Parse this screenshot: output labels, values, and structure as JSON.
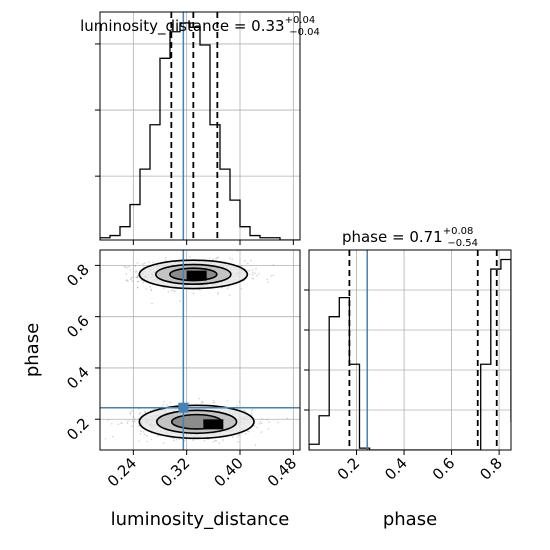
{
  "chart_data": {
    "type": "corner",
    "parameters": [
      "luminosity_distance",
      "phase"
    ],
    "colors": {
      "truth": "#4682b4",
      "hist": "#000000",
      "quantile": "#000000",
      "grid": "#b0b0b0",
      "scatter": "#808080"
    },
    "truth": {
      "luminosity_distance": 0.315,
      "phase": 0.245
    },
    "luminosity_distance": {
      "title_prefix": "luminosity_distance = ",
      "median": "0.33",
      "plus": "+0.04",
      "minus": "−0.04",
      "quantiles": [
        0.297,
        0.33,
        0.366
      ],
      "xlim": [
        0.19,
        0.49
      ],
      "ticks": [
        "0.24",
        "0.32",
        "0.40",
        "0.48"
      ],
      "tick_values": [
        0.24,
        0.32,
        0.4,
        0.48
      ],
      "xlabel": "luminosity_distance",
      "bin_edges_start": 0.19,
      "bin_width": 0.015,
      "counts": [
        1,
        2,
        6,
        16,
        32,
        52,
        82,
        94,
        98,
        96,
        88,
        52,
        32,
        18,
        6,
        2,
        1,
        1,
        0,
        0
      ]
    },
    "phase": {
      "title_prefix": "phase = ",
      "median": "0.71",
      "plus": "+0.08",
      "minus": "−0.54",
      "quantiles": [
        0.17,
        0.71,
        0.79
      ],
      "xlim": [
        0.0,
        0.85
      ],
      "ticks": [
        "0.2",
        "0.4",
        "0.6",
        "0.8"
      ],
      "tick_values": [
        0.2,
        0.4,
        0.6,
        0.8
      ],
      "xlabel": "phase",
      "bin_edges_start": 0.0,
      "bin_width": 0.0425,
      "counts": [
        3,
        18,
        70,
        80,
        45,
        1,
        0,
        0,
        0,
        0,
        0,
        0,
        0,
        0,
        0,
        0,
        0,
        45,
        95,
        100,
        15
      ]
    },
    "joint": {
      "ylabel": "phase",
      "ylim": [
        0.08,
        0.86
      ],
      "yticks": [
        "0.2",
        "0.4",
        "0.6",
        "0.8"
      ],
      "ytick_values": [
        0.2,
        0.4,
        0.6,
        0.8
      ],
      "modes": [
        {
          "cx": 0.33,
          "cy": 0.765,
          "sx": 0.032,
          "sy": 0.03,
          "peak_x": 0.335,
          "peak_y": 0.76
        },
        {
          "cx": 0.335,
          "cy": 0.19,
          "sx": 0.034,
          "sy": 0.035,
          "peak_x": 0.36,
          "peak_y": 0.18
        }
      ],
      "contour_levels": [
        1.0,
        1.6,
        2.3
      ]
    }
  }
}
